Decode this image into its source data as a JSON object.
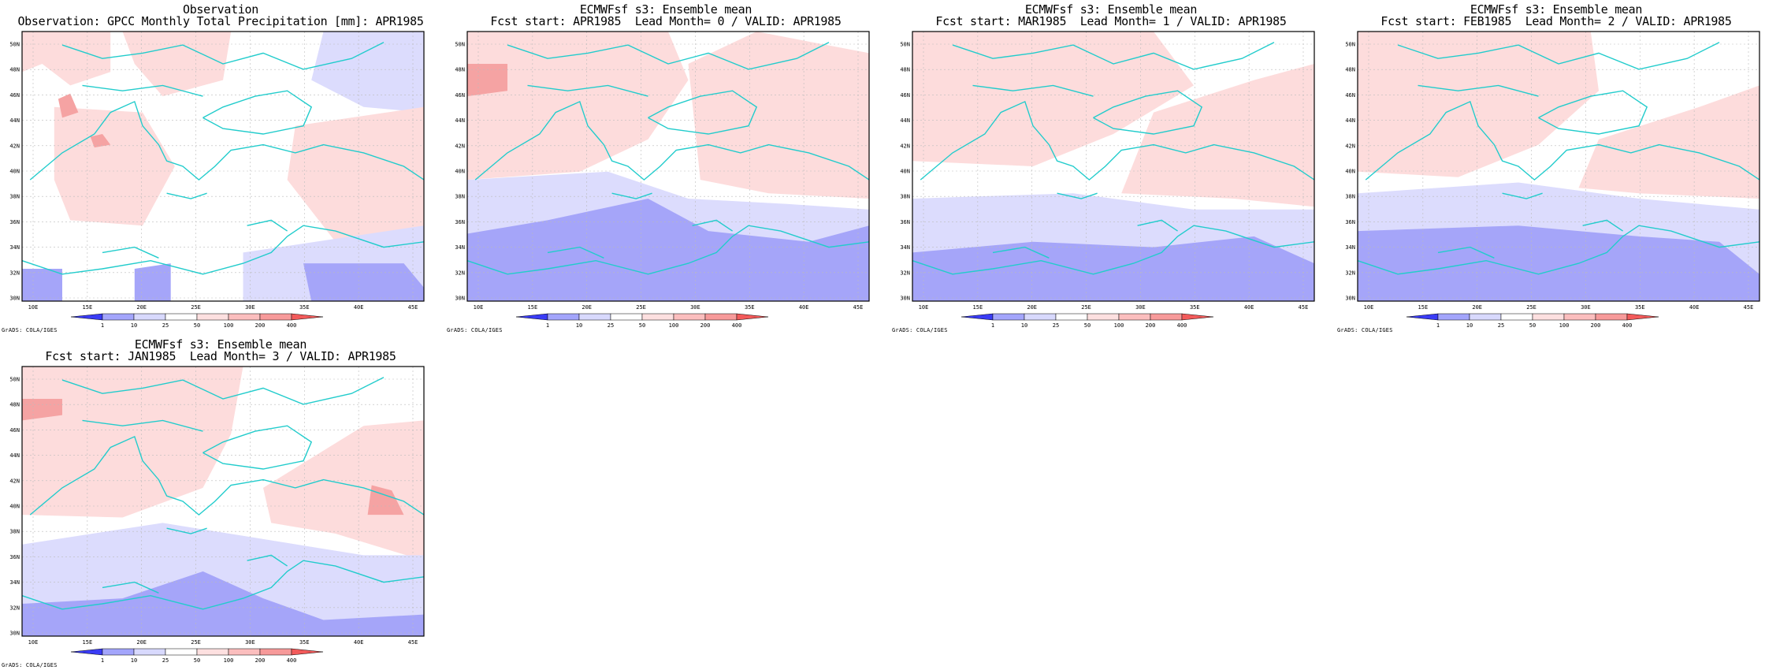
{
  "panels": [
    {
      "title_line1": "Observation",
      "title_line2": "Observation: GPCC Monthly Total Precipitation [mm]: APR1985",
      "footer": "GrADS: COLA/IGES"
    },
    {
      "title_line1": "ECMWFsf s3: Ensemble mean",
      "title_line2": "Fcst start: APR1985  Lead Month= 0 / VALID: APR1985",
      "footer": "GrADS: COLA/IGES"
    },
    {
      "title_line1": "ECMWFsf s3: Ensemble mean",
      "title_line2": "Fcst start: MAR1985  Lead Month= 1 / VALID: APR1985",
      "footer": "GrADS: COLA/IGES"
    },
    {
      "title_line1": "ECMWFsf s3: Ensemble mean",
      "title_line2": "Fcst start: FEB1985  Lead Month= 2 / VALID: APR1985",
      "footer": "GrADS: COLA/IGES"
    },
    {
      "title_line1": "ECMWFsf s3: Ensemble mean",
      "title_line2": "Fcst start: JAN1985  Lead Month= 3 / VALID: APR1985",
      "footer": "GrADS: COLA/IGES"
    }
  ],
  "axes": {
    "lon_labels": [
      "10E",
      "15E",
      "20E",
      "25E",
      "30E",
      "35E",
      "40E",
      "45E"
    ],
    "lat_labels": [
      "30N",
      "32N",
      "34N",
      "36N",
      "38N",
      "40N",
      "42N",
      "44N",
      "46N",
      "48N",
      "50N"
    ]
  },
  "colorbar": {
    "ticks": [
      "1",
      "10",
      "25",
      "50",
      "100",
      "200",
      "400"
    ],
    "colors": [
      "#3a3cf5",
      "#a3a5fb",
      "#d8d9fd",
      "#ffffff",
      "#fde0e0",
      "#fbbebe",
      "#f79a9a",
      "#f25a5a"
    ]
  },
  "map_colors": {
    "blue_light": "#dcdcfd",
    "blue_mid": "#a5a5f9",
    "blue_dark": "#5a5cf2",
    "pink_light": "#fddcdc",
    "pink_mid": "#f5a3a3",
    "coast": "#22cccc",
    "grid": "#bbbbbb"
  }
}
